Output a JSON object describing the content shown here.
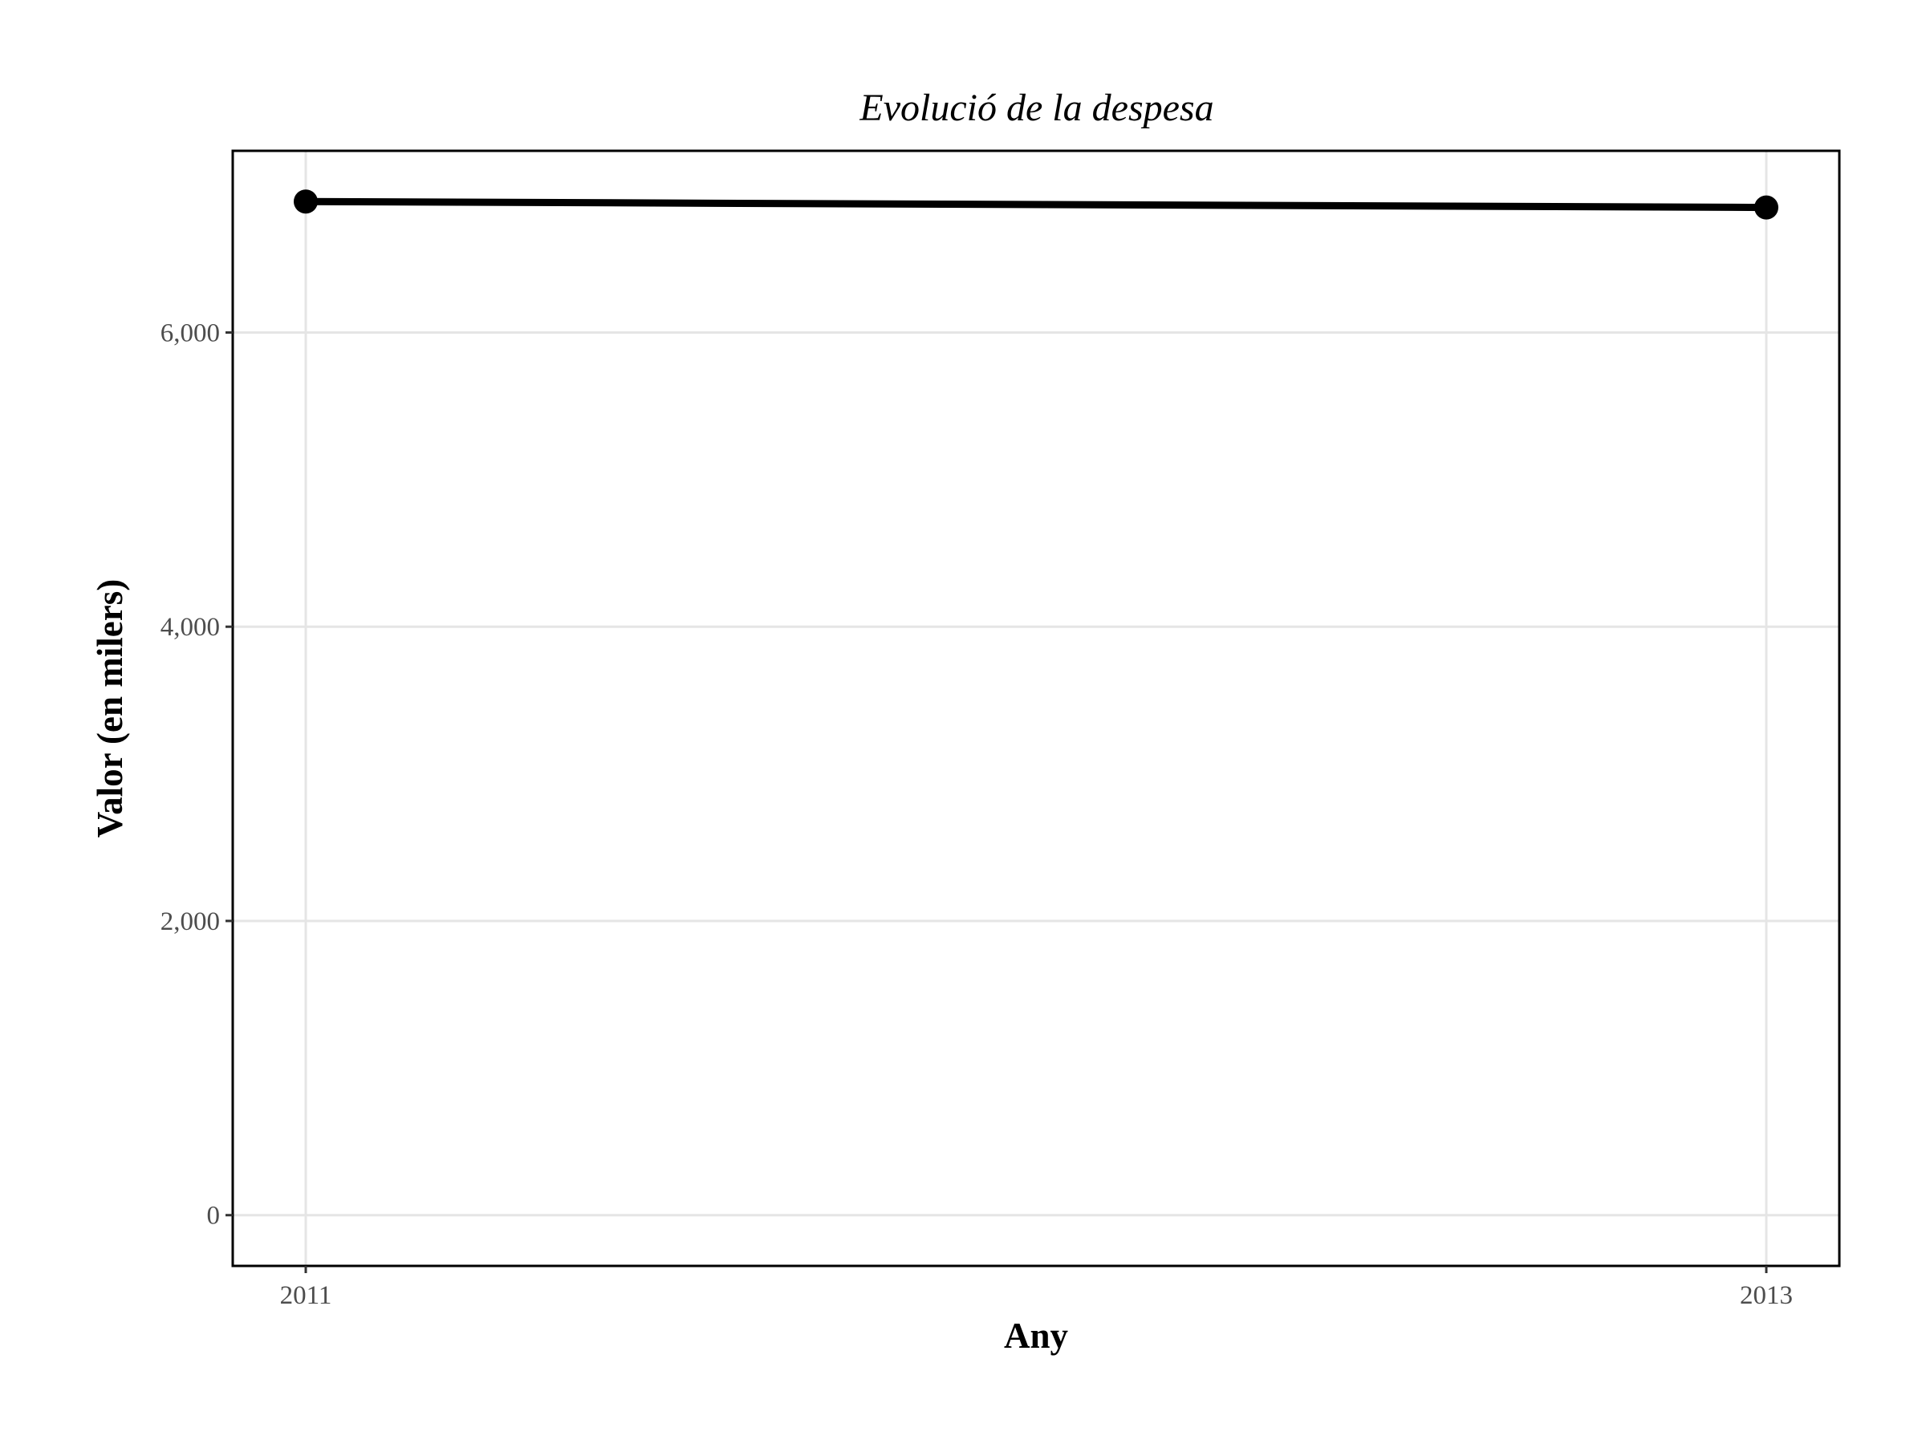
{
  "chart_data": {
    "type": "line",
    "title": "Evolució de la despesa",
    "xlabel": "Any",
    "ylabel": "Valor (en milers)",
    "x": [
      2011,
      2013
    ],
    "x_ticks": [
      2011,
      2013
    ],
    "x_tick_labels": [
      "2011",
      "2013"
    ],
    "xlim": [
      2010.9,
      2013.1
    ],
    "y_ticks": [
      0,
      2000,
      4000,
      6000
    ],
    "y_tick_labels": [
      "0",
      "2,000",
      "4,000",
      "6,000"
    ],
    "ylim": [
      -345,
      7235
    ],
    "grid": true,
    "series": [
      {
        "values": [
          6890,
          6850
        ],
        "color": "#000000"
      }
    ]
  }
}
